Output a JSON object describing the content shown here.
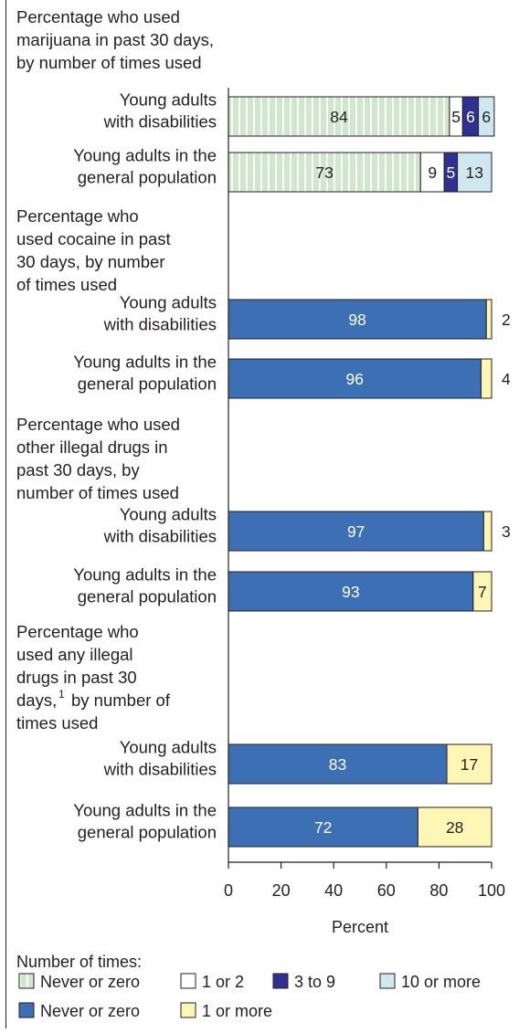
{
  "chart_data": {
    "type": "bar",
    "orientation": "horizontal",
    "stacked": true,
    "xlabel": "Percent",
    "xlim": [
      0,
      100
    ],
    "xticks": [
      "0",
      "20",
      "40",
      "60",
      "80",
      "100"
    ],
    "groups": [
      {
        "title_lines": [
          "Percentage who used",
          "marijuana in past 30 days,",
          "by number of times used"
        ],
        "scheme": "marijuana",
        "rows": [
          {
            "label_lines": [
              "Young adults",
              "with disabilities"
            ],
            "segments": [
              {
                "key": "never_striped",
                "value": 84,
                "label": "84"
              },
              {
                "key": "one_two",
                "value": 5,
                "label": "5"
              },
              {
                "key": "three_nine",
                "value": 6,
                "label": "6"
              },
              {
                "key": "ten_more",
                "value": 6,
                "label": "6"
              }
            ]
          },
          {
            "label_lines": [
              "Young adults in the",
              "general population"
            ],
            "segments": [
              {
                "key": "never_striped",
                "value": 73,
                "label": "73"
              },
              {
                "key": "one_two",
                "value": 9,
                "label": "9"
              },
              {
                "key": "three_nine",
                "value": 5,
                "label": "5"
              },
              {
                "key": "ten_more",
                "value": 13,
                "label": "13"
              }
            ]
          }
        ]
      },
      {
        "title_lines": [
          "Percentage who",
          "used cocaine in past",
          "30 days, by number",
          "of times used"
        ],
        "scheme": "other",
        "rows": [
          {
            "label_lines": [
              "Young adults",
              "with disabilities"
            ],
            "segments": [
              {
                "key": "never_solid",
                "value": 98,
                "label": "98"
              },
              {
                "key": "one_more",
                "value": 2,
                "label": "2",
                "outside": true
              }
            ]
          },
          {
            "label_lines": [
              "Young adults in the",
              "general population"
            ],
            "segments": [
              {
                "key": "never_solid",
                "value": 96,
                "label": "96"
              },
              {
                "key": "one_more",
                "value": 4,
                "label": "4",
                "outside": true
              }
            ]
          }
        ]
      },
      {
        "title_lines": [
          "Percentage who used",
          "other illegal drugs in",
          "past 30 days, by",
          "number of times used"
        ],
        "scheme": "other",
        "rows": [
          {
            "label_lines": [
              "Young adults",
              "with disabilities"
            ],
            "segments": [
              {
                "key": "never_solid",
                "value": 97,
                "label": "97"
              },
              {
                "key": "one_more",
                "value": 3,
                "label": "3",
                "outside": true
              }
            ]
          },
          {
            "label_lines": [
              "Young adults in the",
              "general population"
            ],
            "segments": [
              {
                "key": "never_solid",
                "value": 93,
                "label": "93"
              },
              {
                "key": "one_more",
                "value": 7,
                "label": "7"
              }
            ]
          }
        ]
      },
      {
        "title_lines": [
          "Percentage who",
          "used any illegal",
          "drugs in past 30",
          "days,",
          "by number of",
          "times used"
        ],
        "title_footnote": "1",
        "scheme": "other",
        "rows": [
          {
            "label_lines": [
              "Young adults",
              "with disabilities"
            ],
            "segments": [
              {
                "key": "never_solid",
                "value": 83,
                "label": "83"
              },
              {
                "key": "one_more",
                "value": 17,
                "label": "17"
              }
            ]
          },
          {
            "label_lines": [
              "Young adults in the",
              "general population"
            ],
            "segments": [
              {
                "key": "never_solid",
                "value": 72,
                "label": "72"
              },
              {
                "key": "one_more",
                "value": 28,
                "label": "28"
              }
            ]
          }
        ]
      }
    ],
    "legend": {
      "title": "Number of times:",
      "placement": "bottom",
      "rows": [
        [
          {
            "key": "never_striped",
            "label": "Never or zero"
          },
          {
            "key": "one_two",
            "label": "1 or 2"
          },
          {
            "key": "three_nine",
            "label": "3 to 9"
          },
          {
            "key": "ten_more",
            "label": "10 or more"
          }
        ],
        [
          {
            "key": "never_solid",
            "label": "Never or zero"
          },
          {
            "key": "one_more",
            "label": "1 or more"
          }
        ]
      ]
    },
    "colors": {
      "never_striped": "#cfe8cc",
      "never_striped_stripe": "#ffffff",
      "one_two": "#ffffff",
      "three_nine": "#2e3192",
      "ten_more": "#cfe7ee",
      "never_solid": "#3d6fb5",
      "one_more": "#fdf6b5",
      "text": "#231f20"
    }
  }
}
